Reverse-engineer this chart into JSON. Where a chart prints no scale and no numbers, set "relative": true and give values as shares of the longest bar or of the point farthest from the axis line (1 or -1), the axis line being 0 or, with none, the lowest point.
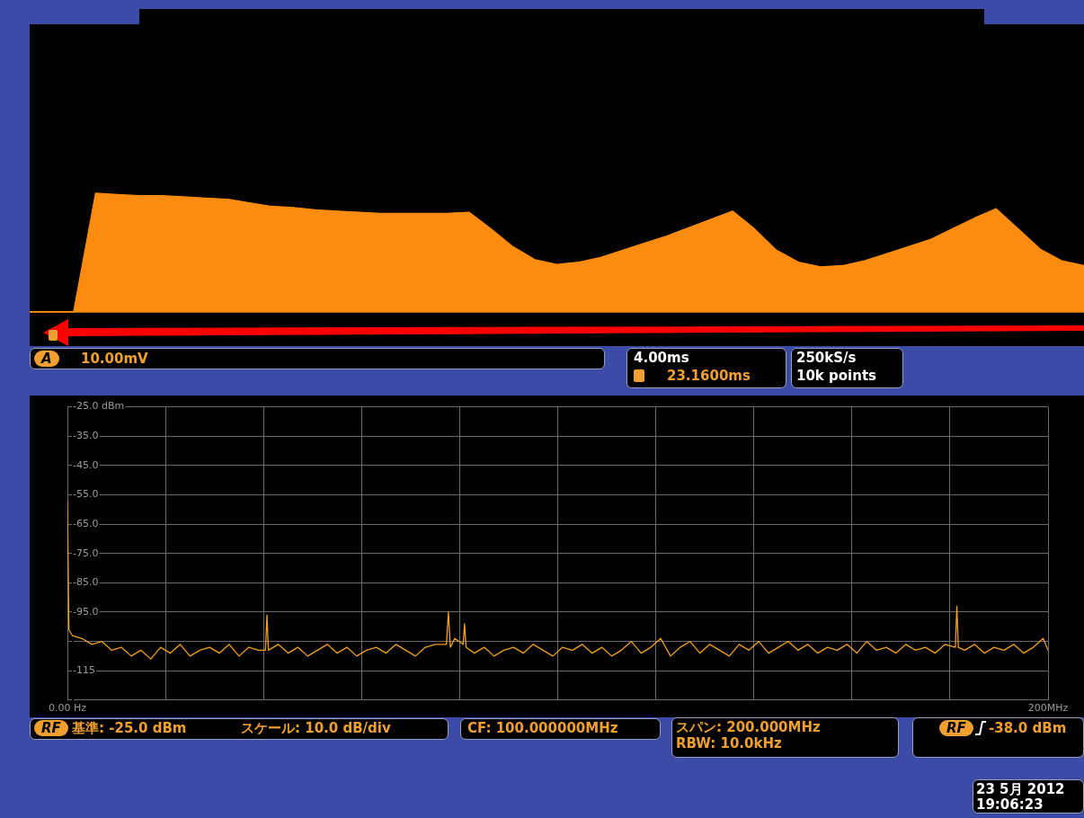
{
  "chart_data": [
    {
      "type": "area",
      "relative": true,
      "color": "#fb8c0f",
      "categories": [
        null,
        null,
        null,
        null,
        null,
        null,
        null,
        null,
        null,
        null,
        null,
        null,
        null,
        null,
        null,
        null,
        null,
        null,
        null,
        null,
        null,
        null,
        null,
        null,
        null,
        null,
        null,
        null,
        null,
        null,
        null,
        null,
        null,
        null,
        null,
        null,
        null,
        null,
        null,
        null,
        null,
        null,
        null,
        null,
        null,
        null,
        null,
        null,
        null
      ],
      "values": [
        0,
        0,
        0,
        1,
        0.99,
        0.98,
        0.98,
        0.97,
        0.96,
        0.95,
        0.92,
        0.89,
        0.88,
        0.86,
        0.85,
        0.84,
        0.83,
        0.83,
        0.83,
        0.83,
        0.84,
        0.7,
        0.55,
        0.44,
        0.4,
        0.42,
        0.46,
        0.52,
        0.58,
        0.64,
        0.71,
        0.78,
        0.85,
        0.7,
        0.52,
        0.42,
        0.38,
        0.39,
        0.43,
        0.49,
        0.55,
        0.61,
        0.7,
        0.79,
        0.87,
        0.7,
        0.53,
        0.43,
        0.39
      ],
      "annotations": [
        "A",
        "10.00mV",
        "4.00ms",
        "23.1600ms",
        "250kS/s",
        "10k points"
      ]
    },
    {
      "type": "line",
      "color": "#f0a020",
      "grid": true,
      "x": [
        0,
        0.3,
        1,
        3,
        5,
        7,
        9,
        11,
        13,
        15,
        17,
        19,
        21,
        23,
        25,
        27,
        29,
        31,
        33,
        35,
        37,
        39,
        40.4,
        40.7,
        41,
        43,
        45,
        47,
        49,
        51,
        53,
        55,
        57,
        59,
        61,
        63,
        65,
        67,
        69,
        71,
        73,
        75,
        77.3,
        77.7,
        78.1,
        79,
        80.7,
        81,
        81.3,
        83,
        85,
        87,
        89,
        91,
        93,
        95,
        97,
        99,
        101,
        103,
        105,
        107,
        109,
        111,
        113,
        115,
        117,
        119,
        121,
        123,
        125,
        127,
        129,
        131,
        133,
        135,
        137,
        139,
        141,
        143,
        145,
        147,
        149,
        151,
        153,
        155,
        157,
        159,
        161,
        163,
        165,
        167,
        169,
        171,
        173,
        175,
        177,
        179,
        181.1,
        181.4,
        181.7,
        183,
        185,
        187,
        189,
        191,
        193,
        195,
        197,
        199,
        200
      ],
      "values": [
        -57,
        -101,
        -103,
        -104,
        -106,
        -105,
        -108,
        -107,
        -110,
        -108,
        -111,
        -107,
        -109,
        -106,
        -110,
        -108,
        -107,
        -109,
        -106,
        -110,
        -107,
        -108,
        -108,
        -96,
        -108,
        -106,
        -109,
        -107,
        -110,
        -108,
        -106,
        -109,
        -107,
        -110,
        -108,
        -107,
        -109,
        -106,
        -108,
        -110,
        -107,
        -106,
        -106,
        -95,
        -107,
        -104,
        -106,
        -99,
        -107,
        -109,
        -107,
        -110,
        -108,
        -107,
        -109,
        -106,
        -108,
        -110,
        -107,
        -108,
        -106,
        -109,
        -107,
        -110,
        -108,
        -105,
        -109,
        -107,
        -104,
        -110,
        -107,
        -105,
        -109,
        -106,
        -108,
        -110,
        -106,
        -108,
        -105,
        -109,
        -107,
        -105,
        -108,
        -106,
        -109,
        -107,
        -108,
        -106,
        -109,
        -105,
        -108,
        -107,
        -109,
        -106,
        -108,
        -107,
        -109,
        -106,
        -107,
        -93,
        -107,
        -108,
        -106,
        -109,
        -107,
        -108,
        -106,
        -109,
        -107,
        -104,
        -108
      ],
      "xlim": [
        0,
        200
      ],
      "xticks": [
        {
          "value": 0,
          "label": "0.00 Hz"
        },
        {
          "value": 20,
          "label": null
        },
        {
          "value": 40,
          "label": null
        },
        {
          "value": 60,
          "label": null
        },
        {
          "value": 80,
          "label": null
        },
        {
          "value": 100,
          "label": null
        },
        {
          "value": 120,
          "label": null
        },
        {
          "value": 140,
          "label": null
        },
        {
          "value": 160,
          "label": null
        },
        {
          "value": 180,
          "label": null
        },
        {
          "value": 200,
          "label": "200MHz"
        }
      ],
      "ylim": [
        -125,
        -25
      ],
      "yticks": [
        {
          "value": -25,
          "label": "-25.0 dBm"
        },
        {
          "value": -35,
          "label": "-35.0"
        },
        {
          "value": -45,
          "label": "-45.0"
        },
        {
          "value": -55,
          "label": "-55.0"
        },
        {
          "value": -65,
          "label": "-65.0"
        },
        {
          "value": -75,
          "label": "-75.0"
        },
        {
          "value": -85,
          "label": "-85.0"
        },
        {
          "value": -95,
          "label": "-95.0"
        },
        {
          "value": -105,
          "label": null
        },
        {
          "value": -115,
          "label": "-115"
        },
        {
          "value": -125,
          "label": null
        }
      ],
      "annotations": [
        "RF",
        "基準: -25.0 dBm",
        "スケール: 10.0 dB/div",
        "CF: 100.000000MHz",
        "スパン: 200.000MHz",
        "RBW: 10.0kHz",
        "RF",
        "-38.0 dBm",
        "23 5月 2012",
        "19:06:23"
      ]
    }
  ]
}
